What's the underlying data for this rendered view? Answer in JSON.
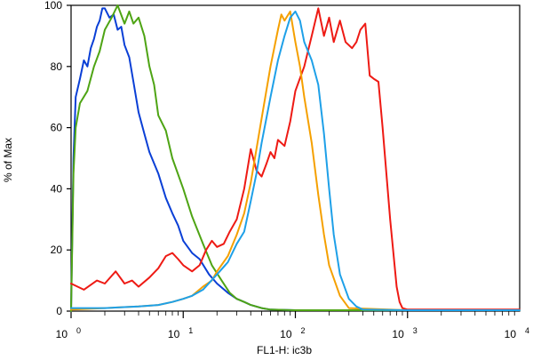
{
  "chart_data": {
    "type": "line",
    "xlabel": "FL1-H: ic3b",
    "ylabel": "% of Max",
    "x_scale": "log",
    "xlim": [
      1,
      10000
    ],
    "ylim": [
      0,
      100
    ],
    "grid": false,
    "y_ticks": [
      0,
      20,
      40,
      60,
      80,
      100
    ],
    "x_ticks": [
      {
        "base": "10",
        "exp": "0",
        "value": 1
      },
      {
        "base": "10",
        "exp": "1",
        "value": 10
      },
      {
        "base": "10",
        "exp": "2",
        "value": 100
      },
      {
        "base": "10",
        "exp": "3",
        "value": 1000
      },
      {
        "base": "10",
        "exp": "4",
        "value": 10000
      }
    ],
    "series": [
      {
        "color": "#0a3fd6",
        "x": [
          1,
          1.05,
          1.1,
          1.2,
          1.3,
          1.4,
          1.5,
          1.6,
          1.7,
          1.8,
          1.9,
          2.0,
          2.2,
          2.4,
          2.6,
          2.8,
          3.0,
          3.3,
          3.6,
          4.0,
          4.5,
          5.0,
          6.0,
          7.0,
          8.0,
          9.0,
          10,
          12,
          14,
          17,
          20,
          25,
          30,
          35,
          40,
          50,
          60,
          100,
          1000,
          10000
        ],
        "y": [
          0,
          50,
          70,
          76,
          82,
          80,
          86,
          89,
          93,
          95,
          99,
          99,
          96,
          97,
          92,
          93,
          87,
          83,
          75,
          65,
          58,
          52,
          45,
          37,
          32,
          28,
          23,
          19,
          17,
          12,
          9,
          6,
          4,
          3,
          2,
          1,
          0.5,
          0.3,
          0.3,
          0.3
        ]
      },
      {
        "color": "#4ea414",
        "x": [
          1,
          1.05,
          1.1,
          1.2,
          1.4,
          1.6,
          1.8,
          2.0,
          2.3,
          2.6,
          3.0,
          3.3,
          3.6,
          4.0,
          4.5,
          5.0,
          5.5,
          6.0,
          7.0,
          8.0,
          10,
          12,
          15,
          18,
          22,
          26,
          30,
          35,
          40,
          50,
          60,
          100,
          1000,
          10000
        ],
        "y": [
          0,
          45,
          60,
          68,
          72,
          80,
          85,
          92,
          96,
          100,
          94,
          98,
          94,
          96,
          90,
          80,
          74,
          64,
          59,
          50,
          40,
          31,
          22,
          15,
          10,
          6,
          4,
          3,
          2,
          1,
          0.5,
          0.3,
          0.3,
          0.3
        ]
      },
      {
        "color": "#ee1a14",
        "x": [
          1,
          1.3,
          1.7,
          2.0,
          2.5,
          3.0,
          3.5,
          4.0,
          5.0,
          6.0,
          7.0,
          8.0,
          9.0,
          10,
          12,
          14,
          16,
          18,
          20,
          23,
          26,
          30,
          35,
          40,
          45,
          50,
          55,
          60,
          65,
          70,
          80,
          90,
          100,
          120,
          140,
          160,
          180,
          200,
          220,
          250,
          280,
          320,
          350,
          380,
          420,
          460,
          500,
          550,
          600,
          700,
          800,
          850,
          900,
          1000,
          10000
        ],
        "y": [
          9,
          7,
          10,
          9,
          13,
          9,
          10,
          8,
          11,
          14,
          18,
          19,
          17,
          15,
          13,
          15,
          20,
          23,
          21,
          22,
          26,
          30,
          40,
          53,
          46,
          44,
          48,
          52,
          50,
          56,
          54,
          62,
          72,
          80,
          90,
          99,
          90,
          96,
          88,
          95,
          88,
          86,
          88,
          92,
          94,
          77,
          76,
          75,
          60,
          30,
          8,
          3,
          1,
          0.5,
          0.5
        ]
      },
      {
        "color": "#f5a000",
        "x": [
          1,
          2,
          4,
          6,
          8,
          10,
          12,
          15,
          18,
          20,
          25,
          30,
          35,
          40,
          45,
          50,
          60,
          70,
          75,
          80,
          90,
          100,
          110,
          120,
          140,
          160,
          180,
          200,
          250,
          300,
          1000,
          10000
        ],
        "y": [
          0.5,
          1,
          1.5,
          2,
          3,
          4,
          5,
          8,
          10,
          13,
          18,
          25,
          32,
          42,
          53,
          63,
          80,
          92,
          97,
          95,
          98,
          88,
          80,
          70,
          55,
          38,
          25,
          15,
          5,
          1,
          0.3,
          0.3
        ]
      },
      {
        "color": "#1ea0e8",
        "x": [
          1,
          2,
          4,
          6,
          8,
          10,
          12,
          15,
          20,
          25,
          30,
          35,
          40,
          45,
          50,
          60,
          70,
          80,
          90,
          100,
          110,
          120,
          140,
          160,
          180,
          200,
          220,
          250,
          300,
          350,
          400,
          1000,
          10000
        ],
        "y": [
          1,
          1,
          1.5,
          2,
          3,
          4,
          5,
          7,
          12,
          16,
          22,
          26,
          36,
          45,
          55,
          70,
          82,
          90,
          96,
          98,
          95,
          88,
          82,
          74,
          58,
          40,
          25,
          12,
          4,
          1.5,
          0.5,
          0.3,
          0.3
        ]
      }
    ]
  }
}
